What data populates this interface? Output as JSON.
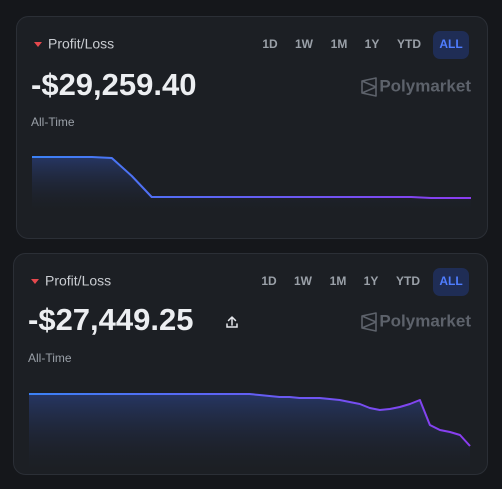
{
  "cards": [
    {
      "label": "Profit/Loss",
      "ranges": [
        "1D",
        "1W",
        "1M",
        "1Y",
        "YTD",
        "ALL"
      ],
      "active_range": "ALL",
      "amount": "-$29,259.40",
      "brand": "Polymarket",
      "period": "All-Time",
      "chart": {
        "type": "area",
        "values": [
          0,
          0,
          0,
          0,
          -714,
          -13559,
          -28545,
          -28545,
          -28545,
          -28545,
          -28545,
          -28545,
          -28545,
          -28545,
          -28545,
          -28545,
          -28545,
          -28545,
          -28545,
          -28545,
          -29259.4,
          -29259.4,
          -29259.4
        ]
      }
    },
    {
      "label": "Profit/Loss",
      "ranges": [
        "1D",
        "1W",
        "1M",
        "1Y",
        "YTD",
        "ALL"
      ],
      "active_range": "ALL",
      "amount": "-$27,449.25",
      "brand": "Polymarket",
      "period": "All-Time",
      "chart": {
        "type": "area",
        "values": [
          0,
          0,
          0,
          0,
          0,
          0,
          0,
          0,
          0,
          0,
          0,
          0,
          0,
          0,
          0,
          0,
          0,
          0,
          0,
          0,
          0,
          0,
          0,
          -528,
          -1056,
          -1584,
          -1584,
          -2112,
          -2112,
          -2112,
          -2640,
          -3167,
          -4223,
          -5279,
          -7391,
          -8446,
          -7918,
          -6863,
          -5279,
          -3167,
          -16365,
          -19004,
          -20060,
          -21644,
          -27449.25
        ]
      }
    }
  ]
}
